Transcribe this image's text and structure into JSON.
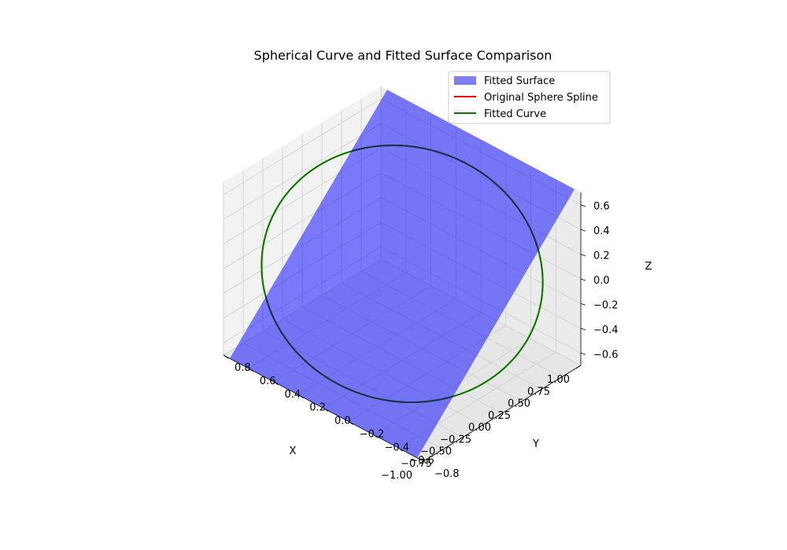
{
  "chart_data": {
    "type": "surface3d",
    "title": "Spherical Curve and Fitted Surface Comparison",
    "xlabel": "X",
    "ylabel": "Y",
    "zlabel": "Z",
    "xlim": [
      -1.0,
      1.0
    ],
    "ylim": [
      -0.8,
      0.8
    ],
    "zlim": [
      -0.7,
      0.7
    ],
    "x_ticks": [
      "−1.00",
      "−0.75",
      "−0.50",
      "−0.25",
      "0.00",
      "0.25",
      "0.50",
      "0.75",
      "1.00"
    ],
    "y_ticks": [
      "−0.8",
      "−0.6",
      "−0.4",
      "−0.2",
      "0.0",
      "0.2",
      "0.4",
      "0.6",
      "0.8"
    ],
    "z_ticks": [
      "−0.6",
      "−0.4",
      "−0.2",
      "0.0",
      "0.2",
      "0.4",
      "0.6"
    ],
    "grid": true,
    "legend": {
      "position": "top-right",
      "entries": [
        {
          "label": "Fitted Surface",
          "color": "#7f7ff2",
          "kind": "patch"
        },
        {
          "label": "Original Sphere Spline",
          "color": "#ff0000",
          "kind": "line"
        },
        {
          "label": "Fitted Curve",
          "color": "#008000",
          "kind": "line"
        }
      ]
    },
    "surface": {
      "name": "Fitted Surface",
      "color": "#0000ff",
      "alpha": 0.5,
      "plane": "z = 0.7*x + 0.0*y",
      "x_range": [
        -1.0,
        1.0
      ],
      "y_range": [
        -0.75,
        0.75
      ]
    },
    "series": [
      {
        "name": "Original Sphere Spline",
        "color": "#ff0000",
        "curve": "great circle of unit sphere in plane z = 0.7*x"
      },
      {
        "name": "Fitted Curve",
        "color": "#008000",
        "curve": "great circle of unit sphere in plane z = 0.7*x"
      }
    ]
  }
}
